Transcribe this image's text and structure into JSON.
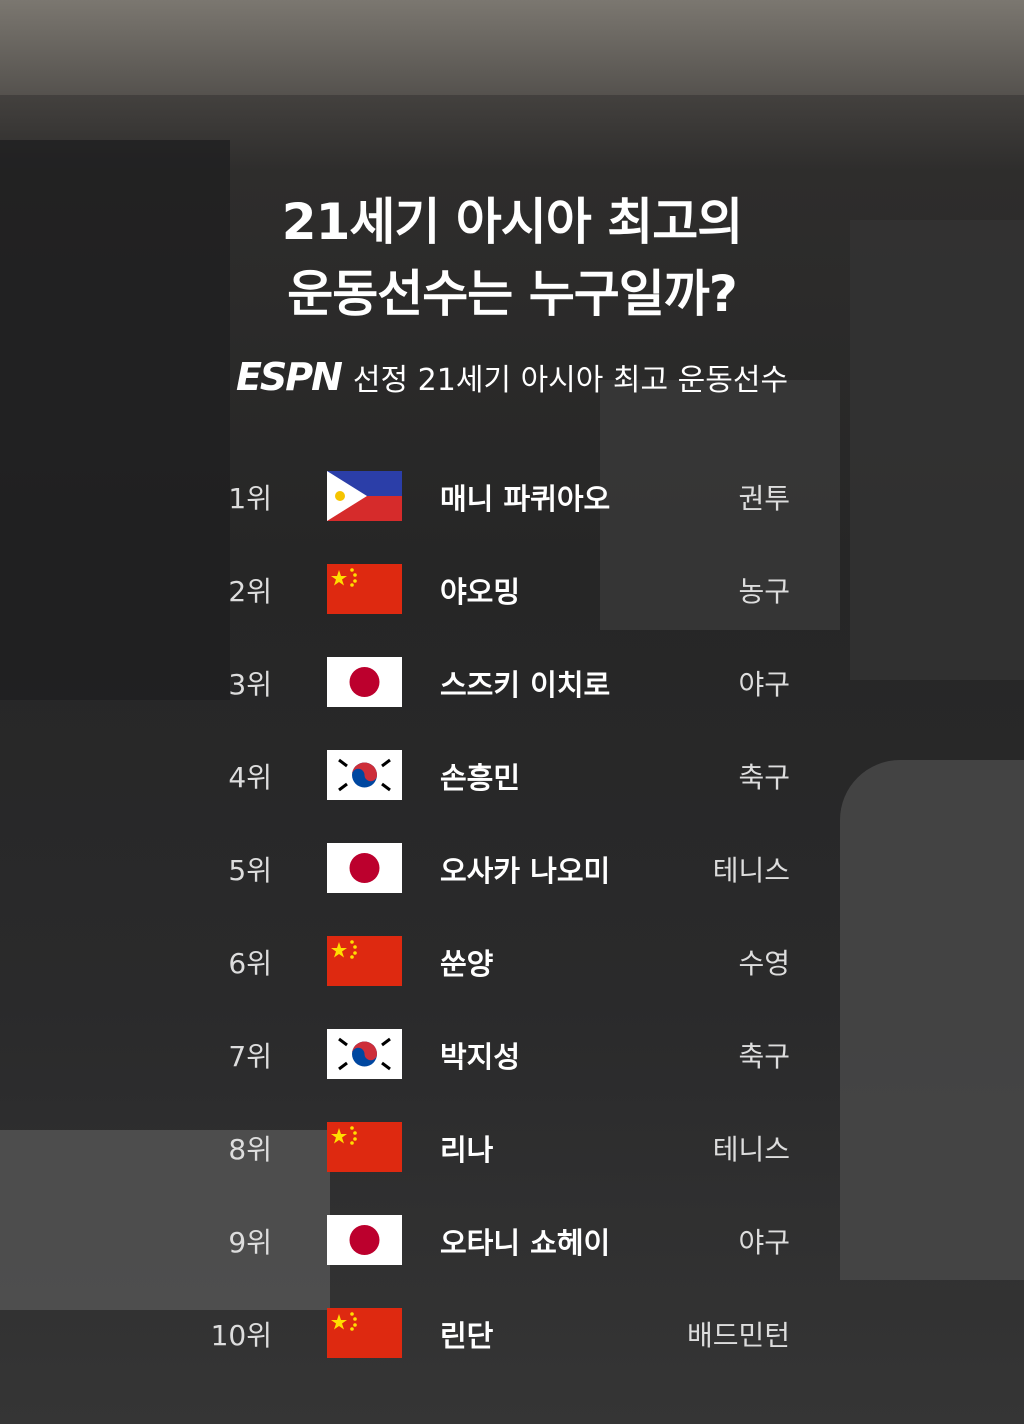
{
  "title_line1": "21세기 아시아 최고의",
  "title_line2": "운동선수는 누구일까?",
  "subtitle_logo": "ESPN",
  "subtitle": "선정 21세기 아시아 최고 운동선수",
  "rankings": [
    {
      "rank": "1위",
      "flag": "philippines",
      "name": "매니 파퀴아오",
      "sport": "권투"
    },
    {
      "rank": "2위",
      "flag": "china",
      "name": "야오밍",
      "sport": "농구"
    },
    {
      "rank": "3위",
      "flag": "japan",
      "name": "스즈키 이치로",
      "sport": "야구"
    },
    {
      "rank": "4위",
      "flag": "korea",
      "name": "손흥민",
      "sport": "축구"
    },
    {
      "rank": "5위",
      "flag": "japan",
      "name": "오사카 나오미",
      "sport": "테니스"
    },
    {
      "rank": "6위",
      "flag": "china",
      "name": "쑨양",
      "sport": "수영"
    },
    {
      "rank": "7위",
      "flag": "korea",
      "name": "박지성",
      "sport": "축구"
    },
    {
      "rank": "8위",
      "flag": "china",
      "name": "리나",
      "sport": "테니스"
    },
    {
      "rank": "9위",
      "flag": "japan",
      "name": "오타니 쇼헤이",
      "sport": "야구"
    },
    {
      "rank": "10위",
      "flag": "china",
      "name": "린단",
      "sport": "배드민턴"
    }
  ]
}
